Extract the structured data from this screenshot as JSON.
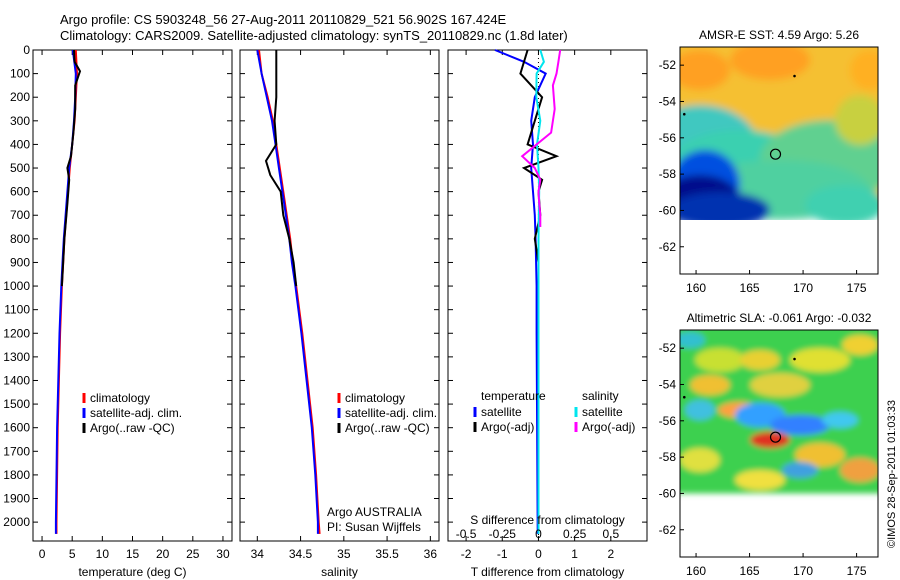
{
  "header": {
    "title_line1": "Argo profile: CS 5903248_56 27-Aug-2011 20110829_521 56.902S 167.424E",
    "title_line2": "Climatology: CARS2009. Satellite-adjusted climatology: synTS_20110829.nc (1.8d later)"
  },
  "credit": "©IMOS 28-Sep-2011 01:03:33",
  "colors": {
    "climatology": "#ff0000",
    "satellite": "#0000ff",
    "argo": "#000000",
    "sal_satellite": "#00e5ee",
    "sal_argo": "#ff00ff"
  },
  "chart_data": [
    {
      "type": "line",
      "panel": "temperature",
      "xlabel": "temperature (deg C)",
      "ylabel": "",
      "xlim": [
        -1.5,
        31.5
      ],
      "ylim": [
        2080,
        0
      ],
      "xticks": [
        0,
        5,
        10,
        15,
        20,
        25,
        30
      ],
      "yticks": [
        0,
        100,
        200,
        300,
        400,
        500,
        600,
        700,
        800,
        900,
        1000,
        1100,
        1200,
        1300,
        1400,
        1500,
        1600,
        1700,
        1800,
        1900,
        2000
      ],
      "legend": [
        "climatology",
        "satellite-adj. clim.",
        "Argo(..raw -QC)"
      ],
      "series": [
        {
          "name": "climatology",
          "color": "red",
          "depth": [
            0,
            100,
            200,
            300,
            400,
            500,
            600,
            700,
            800,
            900,
            1000,
            1200,
            1400,
            1600,
            1800,
            2000,
            2050
          ],
          "values": [
            5.6,
            5.8,
            5.6,
            5.4,
            5.0,
            4.6,
            4.3,
            4.0,
            3.7,
            3.5,
            3.3,
            3.0,
            2.8,
            2.6,
            2.5,
            2.4,
            2.4
          ]
        },
        {
          "name": "satellite-adj. clim.",
          "color": "blue",
          "depth": [
            0,
            100,
            200,
            300,
            400,
            500,
            600,
            700,
            800,
            900,
            1000,
            1200,
            1400,
            1600,
            1800,
            2000,
            2050
          ],
          "values": [
            5.1,
            5.6,
            5.5,
            5.3,
            5.0,
            4.5,
            4.2,
            3.9,
            3.6,
            3.4,
            3.2,
            2.9,
            2.7,
            2.5,
            2.4,
            2.3,
            2.3
          ]
        },
        {
          "name": "Argo(..raw -QC)",
          "color": "black",
          "depth": [
            0,
            50,
            90,
            150,
            250,
            350,
            450,
            500,
            550,
            650,
            800,
            1000
          ],
          "values": [
            5.3,
            5.4,
            6.3,
            5.5,
            5.5,
            5.2,
            4.8,
            4.2,
            4.5,
            4.2,
            3.7,
            3.3
          ]
        }
      ]
    },
    {
      "type": "line",
      "panel": "salinity",
      "xlabel": "salinity",
      "xlim": [
        33.8,
        36.1
      ],
      "ylim": [
        2080,
        0
      ],
      "xticks": [
        34,
        34.5,
        35,
        35.5,
        36
      ],
      "legend": [
        "climatology",
        "satellite-adj. clim.",
        "Argo(..raw -QC)"
      ],
      "annotation": [
        "Argo AUSTRALIA",
        "PI: Susan Wijffels"
      ],
      "series": [
        {
          "name": "climatology",
          "color": "red",
          "depth": [
            0,
            100,
            200,
            300,
            400,
            500,
            600,
            700,
            800,
            900,
            1000,
            1200,
            1400,
            1600,
            1800,
            2000,
            2050
          ],
          "values": [
            34.02,
            34.05,
            34.12,
            34.18,
            34.22,
            34.26,
            34.3,
            34.34,
            34.38,
            34.41,
            34.45,
            34.52,
            34.58,
            34.64,
            34.68,
            34.71,
            34.72
          ]
        },
        {
          "name": "satellite-adj. clim.",
          "color": "blue",
          "depth": [
            0,
            100,
            200,
            300,
            400,
            500,
            600,
            700,
            800,
            900,
            1000,
            1200,
            1400,
            1600,
            1800,
            2000,
            2050
          ],
          "values": [
            34.0,
            34.05,
            34.11,
            34.17,
            34.21,
            34.25,
            34.29,
            34.33,
            34.37,
            34.4,
            34.44,
            34.51,
            34.57,
            34.63,
            34.67,
            34.7,
            34.7
          ]
        },
        {
          "name": "Argo(..raw -QC)",
          "color": "black",
          "depth": [
            0,
            100,
            200,
            300,
            400,
            470,
            530,
            600,
            700,
            800,
            900,
            1000
          ],
          "values": [
            34.22,
            34.22,
            34.22,
            34.2,
            34.22,
            34.1,
            34.15,
            34.27,
            34.3,
            34.37,
            34.42,
            34.45
          ]
        }
      ]
    },
    {
      "type": "line",
      "panel": "difference",
      "xlabel": "T difference from climatology",
      "xlabel_top": "S difference from climatology",
      "xlim": [
        -2.5,
        3
      ],
      "ylim": [
        2080,
        0
      ],
      "xticks": [
        -2,
        -1,
        0,
        1,
        2
      ],
      "xticks_top": [
        -0.5,
        -0.25,
        0,
        0.25,
        0.5
      ],
      "legend_left_title": "temperature",
      "legend_right_title": "salinity",
      "legend": [
        "satellite",
        "Argo(-adj)",
        "satellite",
        "Argo(-adj)"
      ],
      "series": [
        {
          "name": "T satellite",
          "color": "blue",
          "depth": [
            0,
            50,
            100,
            200,
            300,
            400,
            500,
            600,
            700,
            800,
            1000,
            1200,
            1500,
            2050
          ],
          "values": [
            -1.2,
            -0.4,
            0.2,
            -0.1,
            -0.2,
            -0.15,
            -0.2,
            -0.15,
            -0.1,
            -0.08,
            -0.05,
            -0.05,
            -0.04,
            -0.02
          ]
        },
        {
          "name": "T Argo(-adj)",
          "color": "black",
          "depth": [
            0,
            100,
            200,
            300,
            400,
            450,
            500,
            550,
            600,
            700,
            800,
            900,
            1100
          ],
          "values": [
            -0.3,
            -0.5,
            0.1,
            -0.1,
            -0.3,
            0.5,
            -0.4,
            0.1,
            0.0,
            0.05,
            -0.1,
            0.0,
            0.0
          ]
        },
        {
          "name": "S satellite",
          "color": "cyan",
          "depth": [
            0,
            50,
            100,
            200,
            300,
            400,
            500,
            600,
            700,
            800,
            1000,
            1500,
            2050
          ],
          "values": [
            0.05,
            0.15,
            -0.05,
            -0.06,
            0.05,
            -0.04,
            0.0,
            0.02,
            0.01,
            0.0,
            0.0,
            0.0,
            0.0
          ]
        },
        {
          "name": "S Argo(-adj)",
          "color": "magenta",
          "depth": [
            0,
            50,
            100,
            150,
            250,
            350,
            450,
            500,
            550,
            600,
            650,
            700,
            750
          ],
          "values": [
            0.6,
            0.55,
            0.5,
            0.4,
            0.45,
            0.35,
            -0.45,
            -0.1,
            0.05,
            0.0,
            0.02,
            0.05,
            0.05
          ]
        }
      ]
    },
    {
      "type": "heatmap",
      "panel": "sst_map",
      "title": "AMSR-E SST: 4.59 Argo: 5.26",
      "xlim": [
        158.5,
        177
      ],
      "ylim": [
        -63.5,
        -51
      ],
      "xticks": [
        160,
        165,
        170,
        175
      ],
      "yticks": [
        -52,
        -54,
        -56,
        -58,
        -60,
        -62
      ],
      "argo_position": [
        167.424,
        -56.902
      ]
    },
    {
      "type": "heatmap",
      "panel": "sla_map",
      "title": "Altimetric SLA: -0.061 Argo: -0.032",
      "xlim": [
        158.5,
        177
      ],
      "ylim": [
        -63.5,
        -51
      ],
      "xticks": [
        160,
        165,
        170,
        175
      ],
      "yticks": [
        -52,
        -54,
        -56,
        -58,
        -60,
        -62
      ],
      "argo_position": [
        167.424,
        -56.902
      ]
    }
  ]
}
